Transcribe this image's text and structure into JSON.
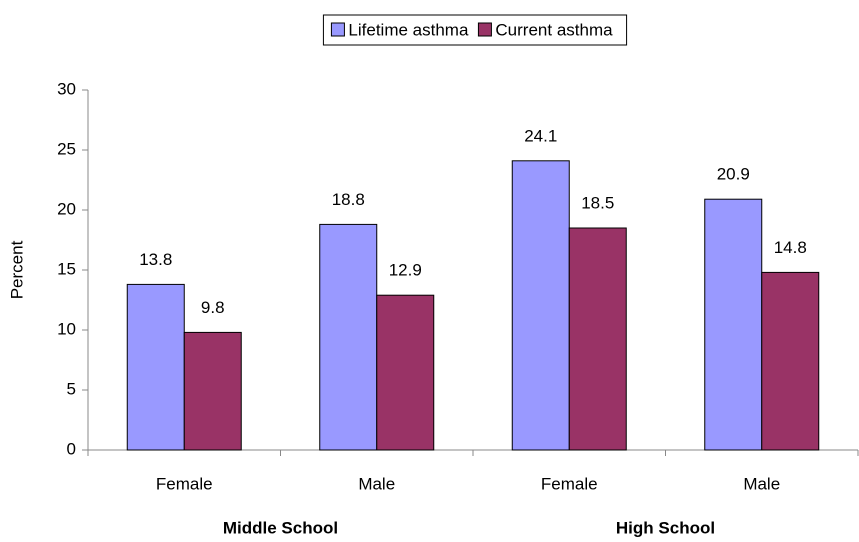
{
  "chart_data": {
    "type": "bar",
    "y_label": "Percent",
    "groups": [
      {
        "name": "Middle School",
        "categories": [
          "Female",
          "Male"
        ]
      },
      {
        "name": "High School",
        "categories": [
          "Female",
          "Male"
        ]
      }
    ],
    "series": [
      {
        "name": "Lifetime asthma",
        "color": "#9999ff",
        "values": [
          13.8,
          18.8,
          24.1,
          20.9
        ]
      },
      {
        "name": "Current asthma",
        "color": "#993366",
        "values": [
          9.8,
          12.9,
          18.5,
          14.8
        ]
      }
    ],
    "ylim": [
      0,
      30
    ],
    "yticks": [
      0,
      5,
      10,
      15,
      20,
      25,
      30
    ],
    "legend": "top"
  }
}
